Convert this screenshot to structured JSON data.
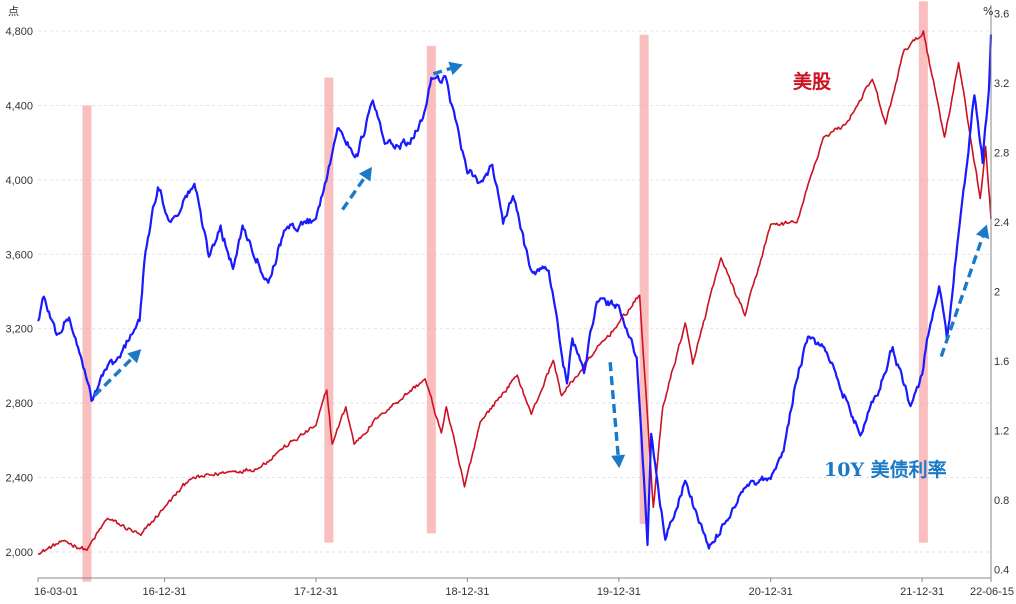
{
  "chart_data": {
    "type": "line",
    "left_unit": "点",
    "right_unit": "%",
    "x_ticks": [
      "16-03-01",
      "16-12-31",
      "17-12-31",
      "18-12-31",
      "19-12-31",
      "20-12-31",
      "21-12-31",
      "22-06-15"
    ],
    "left_ticks": [
      "2,000",
      "2,400",
      "2,800",
      "3,200",
      "3,600",
      "4,000",
      "4,400",
      "4,800"
    ],
    "right_ticks": [
      "0.4",
      "0.8",
      "1.2",
      "1.6",
      "2",
      "2.4",
      "2.8",
      "3.2",
      "3.6"
    ],
    "ylim_left": [
      1860,
      4940
    ],
    "ylim_right": [
      0.35,
      3.65
    ],
    "xlim": [
      "2016-03-01",
      "2022-06-15"
    ],
    "grid": "horizontal dashed",
    "series": [
      {
        "name": "美股",
        "axis": "left",
        "color": "#cc1122",
        "points": [
          [
            "2016-03-01",
            1990
          ],
          [
            "2016-05-01",
            2060
          ],
          [
            "2016-06-27",
            2010
          ],
          [
            "2016-08-15",
            2180
          ],
          [
            "2016-11-04",
            2090
          ],
          [
            "2016-12-31",
            2240
          ],
          [
            "2017-03-01",
            2390
          ],
          [
            "2017-06-01",
            2430
          ],
          [
            "2017-08-15",
            2450
          ],
          [
            "2017-10-01",
            2540
          ],
          [
            "2017-12-31",
            2680
          ],
          [
            "2018-01-26",
            2870
          ],
          [
            "2018-02-08",
            2580
          ],
          [
            "2018-03-13",
            2780
          ],
          [
            "2018-04-02",
            2580
          ],
          [
            "2018-06-01",
            2730
          ],
          [
            "2018-09-20",
            2930
          ],
          [
            "2018-10-29",
            2640
          ],
          [
            "2018-11-10",
            2780
          ],
          [
            "2018-12-24",
            2350
          ],
          [
            "2019-01-31",
            2700
          ],
          [
            "2019-04-30",
            2950
          ],
          [
            "2019-06-03",
            2740
          ],
          [
            "2019-07-26",
            3030
          ],
          [
            "2019-08-15",
            2840
          ],
          [
            "2019-11-01",
            3070
          ],
          [
            "2019-12-31",
            3230
          ],
          [
            "2020-02-19",
            3380
          ],
          [
            "2020-03-23",
            2240
          ],
          [
            "2020-04-15",
            2780
          ],
          [
            "2020-06-08",
            3230
          ],
          [
            "2020-06-26",
            3010
          ],
          [
            "2020-09-02",
            3580
          ],
          [
            "2020-10-30",
            3270
          ],
          [
            "2020-12-31",
            3760
          ],
          [
            "2021-03-04",
            3770
          ],
          [
            "2021-05-07",
            4230
          ],
          [
            "2021-06-30",
            4300
          ],
          [
            "2021-09-02",
            4540
          ],
          [
            "2021-10-04",
            4300
          ],
          [
            "2021-11-18",
            4700
          ],
          [
            "2021-12-31",
            4780
          ],
          [
            "2022-01-03",
            4800
          ],
          [
            "2022-02-23",
            4230
          ],
          [
            "2022-03-29",
            4630
          ],
          [
            "2022-05-20",
            3900
          ],
          [
            "2022-06-02",
            4180
          ],
          [
            "2022-06-15",
            3790
          ]
        ]
      },
      {
        "name": "10Y 美债利率",
        "axis": "right",
        "color": "#1a1aff",
        "points": [
          [
            "2016-03-01",
            1.83
          ],
          [
            "2016-03-15",
            1.97
          ],
          [
            "2016-04-15",
            1.75
          ],
          [
            "2016-05-15",
            1.85
          ],
          [
            "2016-06-15",
            1.6
          ],
          [
            "2016-07-08",
            1.37
          ],
          [
            "2016-08-10",
            1.55
          ],
          [
            "2016-09-15",
            1.62
          ],
          [
            "2016-10-10",
            1.75
          ],
          [
            "2016-11-01",
            1.83
          ],
          [
            "2016-11-15",
            2.23
          ],
          [
            "2016-12-15",
            2.6
          ],
          [
            "2017-01-15",
            2.4
          ],
          [
            "2017-03-13",
            2.62
          ],
          [
            "2017-04-17",
            2.2
          ],
          [
            "2017-05-15",
            2.38
          ],
          [
            "2017-06-14",
            2.13
          ],
          [
            "2017-07-07",
            2.38
          ],
          [
            "2017-09-07",
            2.05
          ],
          [
            "2017-10-15",
            2.35
          ],
          [
            "2017-12-31",
            2.42
          ],
          [
            "2018-01-31",
            2.72
          ],
          [
            "2018-02-21",
            2.94
          ],
          [
            "2018-04-10",
            2.78
          ],
          [
            "2018-05-17",
            3.1
          ],
          [
            "2018-06-15",
            2.85
          ],
          [
            "2018-08-15",
            2.85
          ],
          [
            "2018-09-15",
            3.0
          ],
          [
            "2018-10-05",
            3.23
          ],
          [
            "2018-11-08",
            3.24
          ],
          [
            "2018-12-31",
            2.68
          ],
          [
            "2019-01-31",
            2.63
          ],
          [
            "2019-03-01",
            2.73
          ],
          [
            "2019-03-27",
            2.39
          ],
          [
            "2019-04-20",
            2.55
          ],
          [
            "2019-06-01",
            2.13
          ],
          [
            "2019-07-15",
            2.12
          ],
          [
            "2019-08-28",
            1.47
          ],
          [
            "2019-09-10",
            1.73
          ],
          [
            "2019-10-08",
            1.53
          ],
          [
            "2019-11-08",
            1.94
          ],
          [
            "2019-12-31",
            1.92
          ],
          [
            "2020-02-12",
            1.62
          ],
          [
            "2020-03-09",
            0.54
          ],
          [
            "2020-03-18",
            1.18
          ],
          [
            "2020-04-21",
            0.57
          ],
          [
            "2020-06-08",
            0.91
          ],
          [
            "2020-08-04",
            0.52
          ],
          [
            "2020-09-15",
            0.68
          ],
          [
            "2020-10-30",
            0.87
          ],
          [
            "2020-12-31",
            0.92
          ],
          [
            "2021-01-31",
            1.08
          ],
          [
            "2021-02-28",
            1.46
          ],
          [
            "2021-03-31",
            1.74
          ],
          [
            "2021-05-15",
            1.65
          ],
          [
            "2021-08-04",
            1.17
          ],
          [
            "2021-09-30",
            1.52
          ],
          [
            "2021-10-21",
            1.68
          ],
          [
            "2021-12-03",
            1.34
          ],
          [
            "2021-12-31",
            1.52
          ],
          [
            "2022-01-15",
            1.75
          ],
          [
            "2022-02-10",
            2.03
          ],
          [
            "2022-03-01",
            1.72
          ],
          [
            "2022-04-01",
            2.4
          ],
          [
            "2022-05-06",
            3.13
          ],
          [
            "2022-05-26",
            2.74
          ],
          [
            "2022-06-10",
            3.16
          ],
          [
            "2022-06-15",
            3.48
          ]
        ]
      }
    ],
    "annotations": {
      "stock_label": "美股",
      "bond_label": "10Y 美债利率",
      "highlight_bands": [
        {
          "date": "2016-06-27",
          "ylim_left": [
            1840,
            4400
          ]
        },
        {
          "date": "2018-01-31",
          "ylim_left": [
            2050,
            4550
          ]
        },
        {
          "date": "2018-10-05",
          "ylim_left": [
            2100,
            4720
          ]
        },
        {
          "date": "2020-03-01",
          "ylim_left": [
            2150,
            4780
          ]
        },
        {
          "date": "2022-01-03",
          "ylim_left": [
            2050,
            4960
          ]
        }
      ],
      "arrows": [
        {
          "from": [
            "2016-07-15",
            2840
          ],
          "to": [
            "2016-11-05",
            3090
          ]
        },
        {
          "from": [
            "2018-03-05",
            3840
          ],
          "to": [
            "2018-05-15",
            4070
          ]
        },
        {
          "from": [
            "2018-10-10",
            4570
          ],
          "to": [
            "2018-12-20",
            4620
          ]
        },
        {
          "from": [
            "2019-12-10",
            3020
          ],
          "to": [
            "2020-01-01",
            2450
          ]
        },
        {
          "from": [
            "2022-02-15",
            3050
          ],
          "to": [
            "2022-06-05",
            3760
          ]
        }
      ]
    }
  }
}
